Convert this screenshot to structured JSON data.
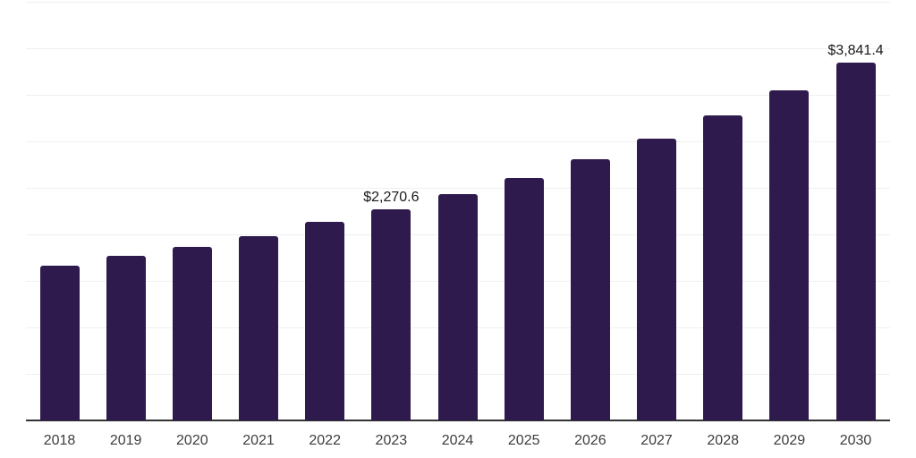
{
  "chart_data": {
    "type": "bar",
    "title": "",
    "xlabel": "",
    "ylabel": "",
    "categories": [
      "2018",
      "2019",
      "2020",
      "2021",
      "2022",
      "2023",
      "2024",
      "2025",
      "2026",
      "2027",
      "2028",
      "2029",
      "2030"
    ],
    "values": [
      1665,
      1770,
      1865,
      1985,
      2130,
      2270.6,
      2435,
      2610,
      2805,
      3025,
      3275,
      3545,
      3841.4
    ],
    "annotations": [
      {
        "category": "2023",
        "label": "$2,270.6"
      },
      {
        "category": "2030",
        "label": "$3,841.4"
      }
    ],
    "ylim": [
      0,
      4500
    ],
    "gridline_interval": 500,
    "grid": "horizontal",
    "legend": "none",
    "y_axis_labels_visible": false,
    "colors": {
      "bar": "#2f1a4d",
      "gridline": "#f0f0f1",
      "axis": "#333333",
      "tick_label": "#3d3d3d",
      "value_label": "#1a1a1a",
      "background": "#ffffff"
    }
  }
}
